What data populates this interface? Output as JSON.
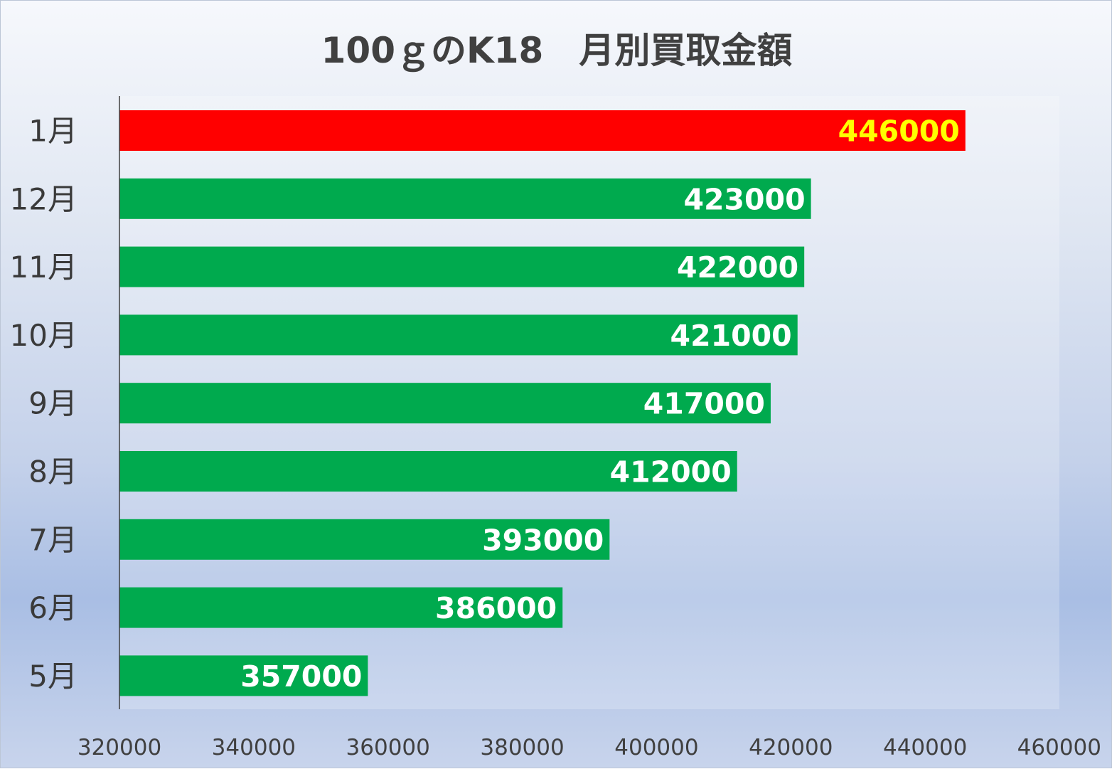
{
  "chart_data": {
    "type": "bar",
    "orientation": "horizontal",
    "title": "100ｇのK18　月別買取金額",
    "categories": [
      "1月",
      "12月",
      "11月",
      "10月",
      "9月",
      "8月",
      "7月",
      "6月",
      "5月"
    ],
    "values": [
      446000,
      423000,
      422000,
      421000,
      417000,
      412000,
      393000,
      386000,
      357000
    ],
    "xlim": [
      320000,
      460000
    ],
    "x_ticks": [
      "320000",
      "340000",
      "360000",
      "380000",
      "400000",
      "420000",
      "440000",
      "460000"
    ],
    "grid": false,
    "legend": "none",
    "bar_colors": [
      "#ff0000",
      "#00aa4e",
      "#00aa4e",
      "#00aa4e",
      "#00aa4e",
      "#00aa4e",
      "#00aa4e",
      "#00aa4e",
      "#00aa4e"
    ],
    "label_colors": [
      "#ffff00",
      "#ffffff",
      "#ffffff",
      "#ffffff",
      "#ffffff",
      "#ffffff",
      "#ffffff",
      "#ffffff",
      "#ffffff"
    ]
  }
}
